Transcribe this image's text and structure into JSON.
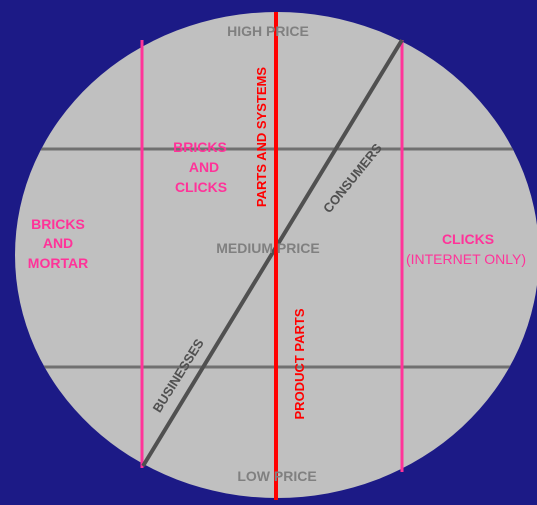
{
  "colors": {
    "background": "#1c1a86",
    "circle": "#c0c0c0",
    "pink": "#ff3399",
    "red": "#ff0000",
    "dark_gray": "#505050",
    "gray_line": "#707070",
    "gray_text": "#808080"
  },
  "price_labels": {
    "high": "HIGH PRICE",
    "medium": "MEDIUM PRICE",
    "low": "LOW PRICE"
  },
  "segments": {
    "bricks_and_mortar": [
      "BRICKS",
      "AND",
      "MORTAR"
    ],
    "bricks_and_clicks": [
      "BRICKS",
      "AND",
      "CLICKS"
    ],
    "clicks": "CLICKS",
    "clicks_note": "(INTERNET ONLY)"
  },
  "axes": {
    "parts_and_systems": "PARTS AND SYSTEMS",
    "product_parts": "PRODUCT PARTS",
    "consumers": "CONSUMERS",
    "businesses": "BUSINESSES"
  }
}
